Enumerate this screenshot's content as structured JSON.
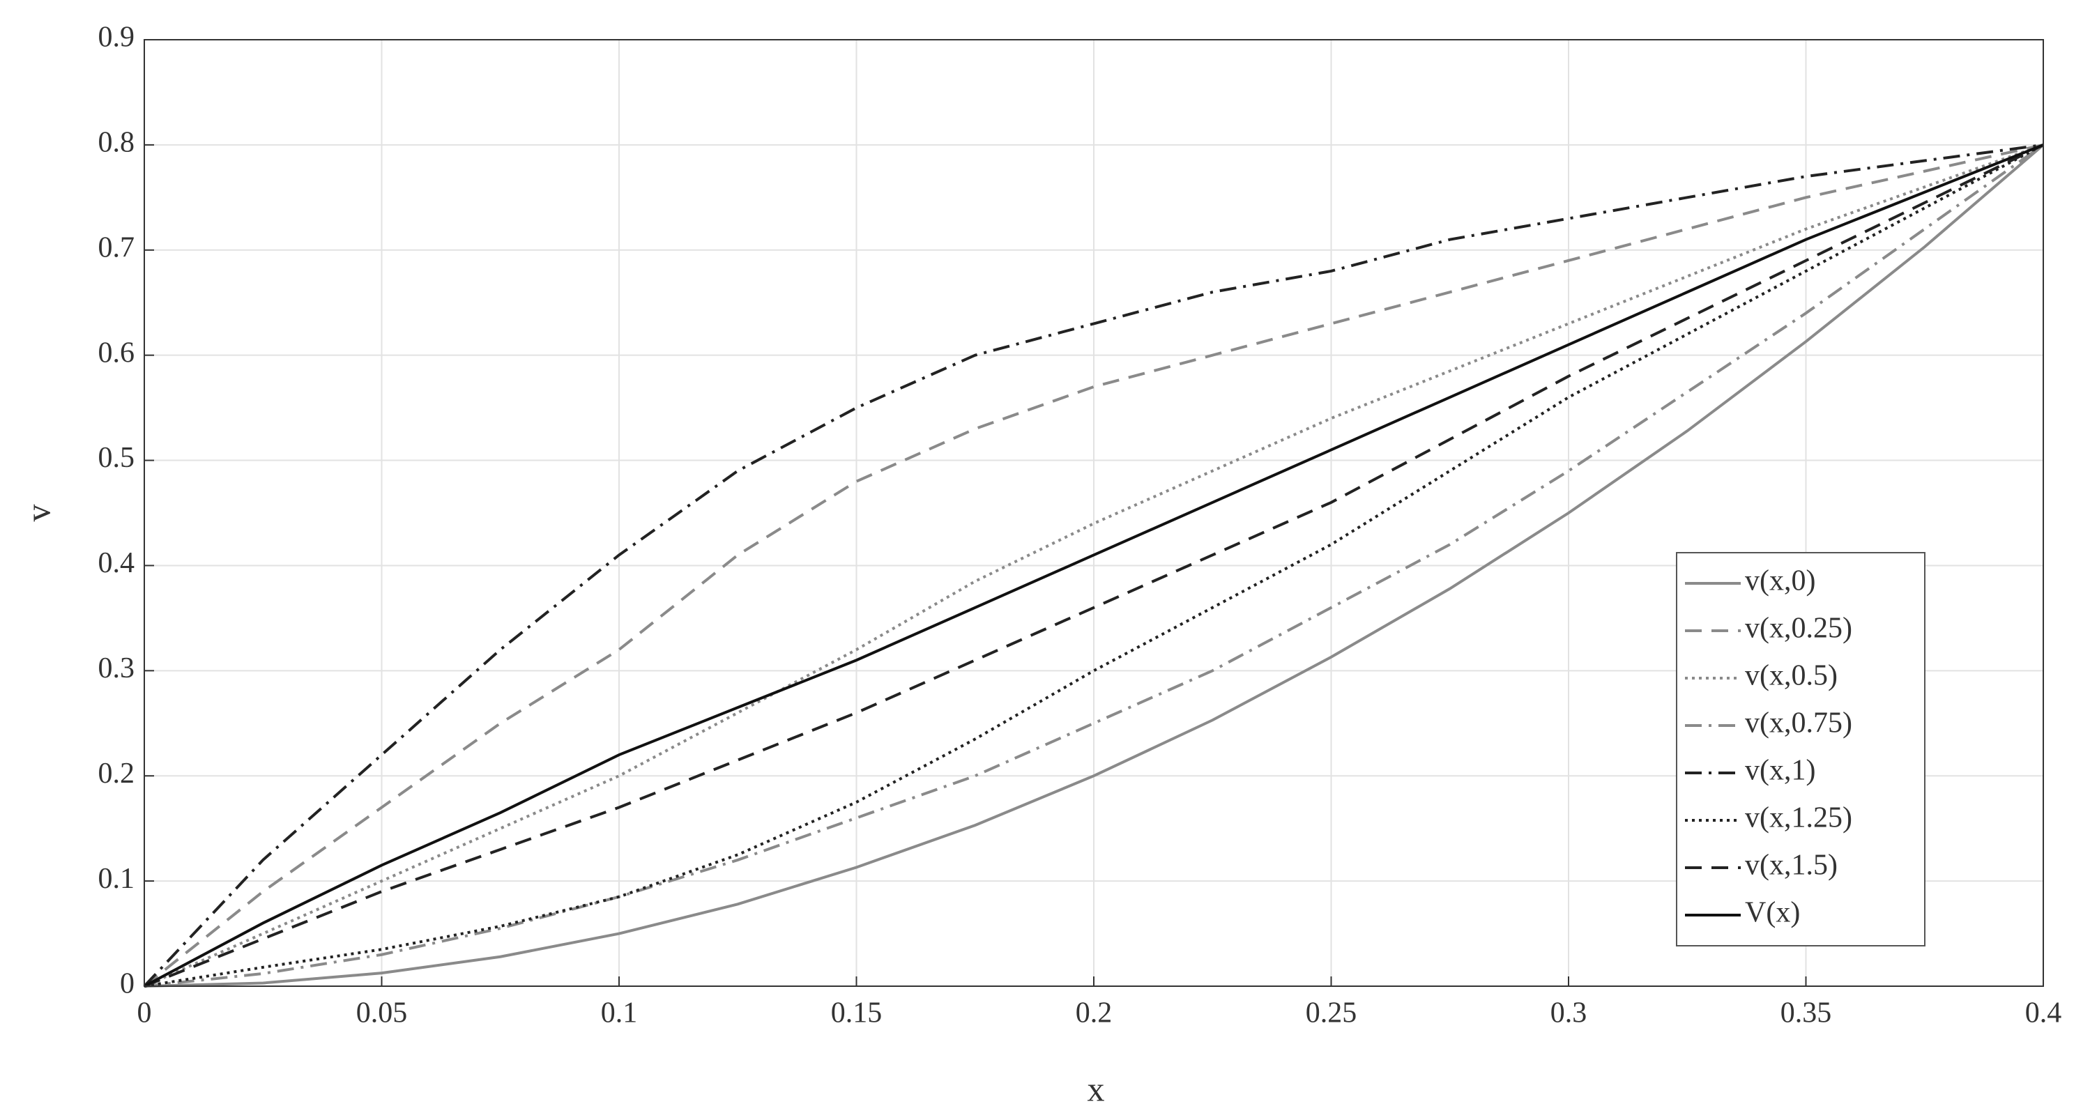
{
  "chart_data": {
    "type": "line",
    "xlabel": "x",
    "ylabel": "v",
    "x": [
      0,
      0.025,
      0.05,
      0.075,
      0.1,
      0.125,
      0.15,
      0.175,
      0.2,
      0.225,
      0.25,
      0.275,
      0.3,
      0.325,
      0.35,
      0.375,
      0.4
    ],
    "series": [
      {
        "name": "v(x,0)",
        "color": "#8a8a8a",
        "dash": "solid",
        "values": [
          0,
          0.003,
          0.0125,
          0.028,
          0.05,
          0.078,
          0.113,
          0.153,
          0.2,
          0.253,
          0.313,
          0.378,
          0.45,
          0.528,
          0.613,
          0.703,
          0.8
        ]
      },
      {
        "name": "v(x,0.25)",
        "color": "#8a8a8a",
        "dash": "dashed",
        "values": [
          0,
          0.09,
          0.17,
          0.25,
          0.32,
          0.41,
          0.48,
          0.53,
          0.57,
          0.6,
          0.63,
          0.66,
          0.69,
          0.72,
          0.75,
          0.775,
          0.8
        ]
      },
      {
        "name": "v(x,0.5)",
        "color": "#8a8a8a",
        "dash": "dotted",
        "values": [
          0,
          0.05,
          0.1,
          0.15,
          0.2,
          0.26,
          0.32,
          0.385,
          0.44,
          0.49,
          0.54,
          0.585,
          0.63,
          0.675,
          0.72,
          0.76,
          0.8
        ]
      },
      {
        "name": "v(x,0.75)",
        "color": "#8a8a8a",
        "dash": "dashdot",
        "values": [
          0,
          0.012,
          0.03,
          0.055,
          0.085,
          0.12,
          0.16,
          0.2,
          0.25,
          0.3,
          0.36,
          0.42,
          0.49,
          0.565,
          0.64,
          0.72,
          0.8
        ]
      },
      {
        "name": "v(x,1)",
        "color": "#222222",
        "dash": "dashdot",
        "values": [
          0,
          0.12,
          0.22,
          0.32,
          0.41,
          0.49,
          0.55,
          0.6,
          0.63,
          0.66,
          0.68,
          0.71,
          0.73,
          0.75,
          0.77,
          0.785,
          0.8
        ]
      },
      {
        "name": "v(x,1.25)",
        "color": "#222222",
        "dash": "dotted",
        "values": [
          0,
          0.018,
          0.035,
          0.057,
          0.085,
          0.125,
          0.175,
          0.235,
          0.3,
          0.36,
          0.42,
          0.49,
          0.56,
          0.62,
          0.68,
          0.74,
          0.8
        ]
      },
      {
        "name": "v(x,1.5)",
        "color": "#222222",
        "dash": "dashed",
        "values": [
          0,
          0.045,
          0.09,
          0.13,
          0.17,
          0.215,
          0.26,
          0.31,
          0.36,
          0.41,
          0.46,
          0.52,
          0.58,
          0.635,
          0.69,
          0.745,
          0.8
        ]
      },
      {
        "name": "V(x)",
        "color": "#111111",
        "dash": "solid",
        "values": [
          0,
          0.06,
          0.115,
          0.165,
          0.22,
          0.265,
          0.31,
          0.36,
          0.41,
          0.46,
          0.51,
          0.56,
          0.61,
          0.66,
          0.71,
          0.755,
          0.8
        ]
      }
    ],
    "xlim": [
      0,
      0.4
    ],
    "xticks": [
      0,
      0.05,
      0.1,
      0.15,
      0.2,
      0.25,
      0.3,
      0.35,
      0.4
    ],
    "ylim": [
      0,
      0.9
    ],
    "yticks": [
      0,
      0.1,
      0.2,
      0.3,
      0.4,
      0.5,
      0.6,
      0.7,
      0.8,
      0.9
    ],
    "grid": true,
    "legend": "lower right"
  }
}
